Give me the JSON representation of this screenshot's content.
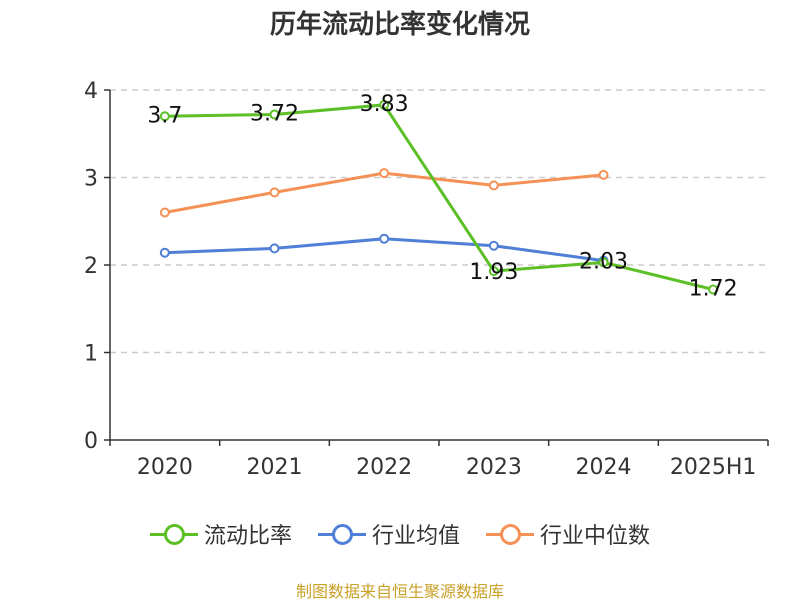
{
  "chart_data": {
    "type": "line",
    "title": "历年流动比率变化情况",
    "categories": [
      "2020",
      "2021",
      "2022",
      "2023",
      "2024",
      "2025H1"
    ],
    "ylim": [
      0,
      4
    ],
    "yticks": [
      "0",
      "1",
      "2",
      "3",
      "4"
    ],
    "grid": true,
    "legend_position": "bottom",
    "series": [
      {
        "name": "流动比率",
        "color": "#5bbf25",
        "values": [
          3.7,
          3.72,
          3.83,
          1.93,
          2.03,
          1.72
        ],
        "labels": [
          "3.7",
          "3.72",
          "3.83",
          "1.93",
          "2.03",
          "1.72"
        ]
      },
      {
        "name": "行业均值",
        "color": "#4f7fd6",
        "values": [
          2.14,
          2.19,
          2.3,
          2.22,
          2.05,
          null
        ]
      },
      {
        "name": "行业中位数",
        "color": "#f59156",
        "values": [
          2.6,
          2.83,
          3.05,
          2.91,
          3.03,
          null
        ]
      }
    ]
  },
  "source": "制图数据来自恒生聚源数据库"
}
